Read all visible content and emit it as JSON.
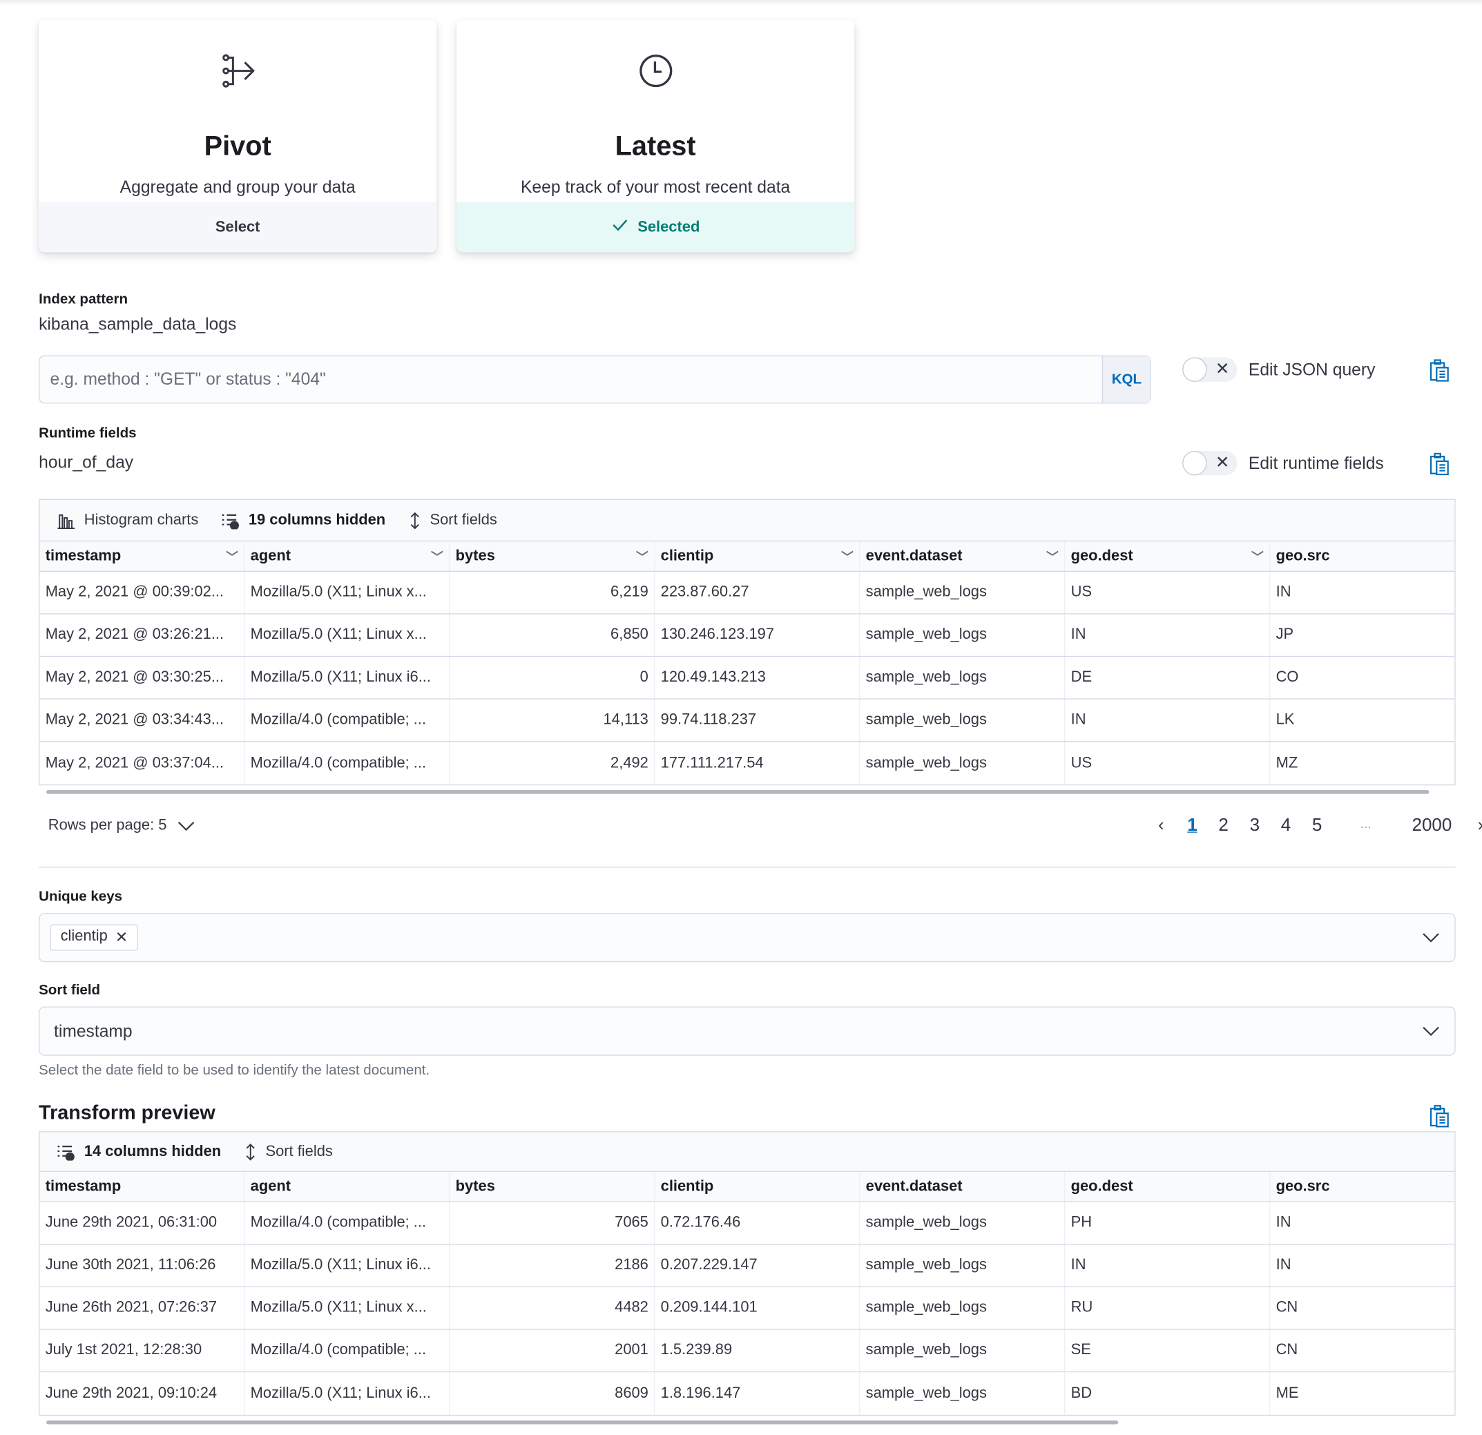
{
  "cards": [
    {
      "icon": "pivot-icon",
      "title": "Pivot",
      "description": "Aggregate and group your data",
      "button": "Select",
      "selected": false
    },
    {
      "icon": "clock-icon",
      "title": "Latest",
      "description": "Keep track of your most recent data",
      "button": "Selected",
      "selected": true
    }
  ],
  "index_pattern": {
    "label": "Index pattern",
    "value": "kibana_sample_data_logs"
  },
  "query": {
    "placeholder": "e.g. method : \"GET\" or status : \"404\"",
    "language": "KQL",
    "json_toggle_label": "Edit JSON query",
    "json_toggle_on": false
  },
  "runtime": {
    "label": "Runtime fields",
    "value": "hour_of_day",
    "toggle_label": "Edit runtime fields",
    "toggle_on": false
  },
  "source_grid": {
    "toolbar": {
      "histogram": "Histogram charts",
      "hidden": "19 columns hidden",
      "sort": "Sort fields"
    },
    "columns": [
      "timestamp",
      "agent",
      "bytes",
      "clientip",
      "event.dataset",
      "geo.dest",
      "geo.src"
    ],
    "rows": [
      [
        "May 2, 2021 @ 00:39:02...",
        "Mozilla/5.0 (X11; Linux x...",
        "6,219",
        "223.87.60.27",
        "sample_web_logs",
        "US",
        "IN"
      ],
      [
        "May 2, 2021 @ 03:26:21...",
        "Mozilla/5.0 (X11; Linux x...",
        "6,850",
        "130.246.123.197",
        "sample_web_logs",
        "IN",
        "JP"
      ],
      [
        "May 2, 2021 @ 03:30:25...",
        "Mozilla/5.0 (X11; Linux i6...",
        "0",
        "120.49.143.213",
        "sample_web_logs",
        "DE",
        "CO"
      ],
      [
        "May 2, 2021 @ 03:34:43...",
        "Mozilla/4.0 (compatible; ...",
        "14,113",
        "99.74.118.237",
        "sample_web_logs",
        "IN",
        "LK"
      ],
      [
        "May 2, 2021 @ 03:37:04...",
        "Mozilla/4.0 (compatible; ...",
        "2,492",
        "177.111.217.54",
        "sample_web_logs",
        "US",
        "MZ"
      ]
    ],
    "rows_per_page": "Rows per page: 5",
    "pages": [
      "1",
      "2",
      "3",
      "4",
      "5",
      "...",
      "2000"
    ],
    "current_page": "1"
  },
  "unique_keys": {
    "label": "Unique keys",
    "chips": [
      "clientip"
    ]
  },
  "sort_field": {
    "label": "Sort field",
    "value": "timestamp",
    "help": "Select the date field to be used to identify the latest document."
  },
  "preview": {
    "title": "Transform preview",
    "toolbar": {
      "hidden": "14 columns hidden",
      "sort": "Sort fields"
    },
    "columns": [
      "timestamp",
      "agent",
      "bytes",
      "clientip",
      "event.dataset",
      "geo.dest",
      "geo.src"
    ],
    "rows": [
      [
        "June 29th 2021, 06:31:00",
        "Mozilla/4.0 (compatible; ...",
        "7065",
        "0.72.176.46",
        "sample_web_logs",
        "PH",
        "IN"
      ],
      [
        "June 30th 2021, 11:06:26",
        "Mozilla/5.0 (X11; Linux i6...",
        "2186",
        "0.207.229.147",
        "sample_web_logs",
        "IN",
        "IN"
      ],
      [
        "June 26th 2021, 07:26:37",
        "Mozilla/5.0 (X11; Linux x...",
        "4482",
        "0.209.144.101",
        "sample_web_logs",
        "RU",
        "CN"
      ],
      [
        "July 1st 2021, 12:28:30",
        "Mozilla/4.0 (compatible; ...",
        "2001",
        "1.5.239.89",
        "sample_web_logs",
        "SE",
        "CN"
      ],
      [
        "June 29th 2021, 09:10:24",
        "Mozilla/5.0 (X11; Linux i6...",
        "8609",
        "1.8.196.147",
        "sample_web_logs",
        "BD",
        "ME"
      ]
    ]
  },
  "colors": {
    "accent": "#006bb8",
    "selected_bg": "#e6f9f7",
    "selected_text": "#017d73"
  }
}
